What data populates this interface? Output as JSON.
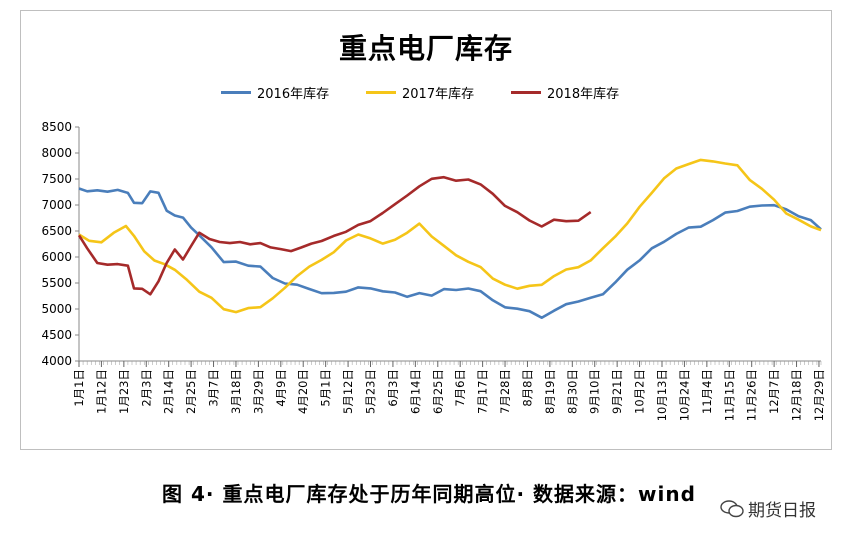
{
  "chart_data": {
    "type": "line",
    "title": "重点电厂库存",
    "ylim": [
      4000,
      8500
    ],
    "yticks": [
      4000,
      4500,
      5000,
      5500,
      6000,
      6500,
      7000,
      7500,
      8000,
      8500
    ],
    "x_tick_labels": [
      "1月1日",
      "1月12日",
      "1月23日",
      "2月3日",
      "2月14日",
      "2月25日",
      "3月7日",
      "3月18日",
      "3月29日",
      "4月9日",
      "4月20日",
      "5月1日",
      "5月12日",
      "5月23日",
      "6月3日",
      "6月14日",
      "6月25日",
      "7月6日",
      "7月17日",
      "7月28日",
      "8月8日",
      "8月19日",
      "8月30日",
      "9月10日",
      "9月21日",
      "10月2日",
      "10月13日",
      "10月24日",
      "11月4日",
      "11月15日",
      "11月26日",
      "12月7日",
      "12月18日",
      "12月29日"
    ],
    "grid": false,
    "legend_position": "top",
    "series": [
      {
        "name": "2016年库存",
        "color": "#4a7ebb",
        "x": [
          1,
          5,
          10,
          15,
          20,
          25,
          28,
          32,
          36,
          40,
          44,
          48,
          52,
          56,
          60,
          66,
          72,
          78,
          84,
          90,
          96,
          102,
          108,
          114,
          120,
          126,
          132,
          138,
          144,
          150,
          156,
          162,
          168,
          174,
          180,
          186,
          192,
          198,
          204,
          210,
          216,
          222,
          228,
          234,
          240,
          246,
          252,
          258,
          264,
          270,
          276,
          282,
          288,
          294,
          300,
          306,
          312,
          318,
          324,
          330,
          336,
          342,
          348,
          354,
          360,
          365
        ],
        "y": [
          7300,
          7250,
          7300,
          7250,
          7280,
          7250,
          7050,
          7050,
          7280,
          7250,
          6900,
          6800,
          6750,
          6550,
          6400,
          6200,
          5900,
          5900,
          5850,
          5800,
          5600,
          5500,
          5450,
          5400,
          5300,
          5300,
          5350,
          5400,
          5400,
          5350,
          5300,
          5250,
          5300,
          5250,
          5400,
          5350,
          5400,
          5350,
          5150,
          5050,
          5000,
          4950,
          4850,
          4950,
          5100,
          5150,
          5200,
          5300,
          5500,
          5750,
          5950,
          6150,
          6300,
          6450,
          6550,
          6600,
          6700,
          6850,
          6900,
          6950,
          7000,
          7000,
          6900,
          6800,
          6700,
          6550
        ]
      },
      {
        "name": "2017年库存",
        "color": "#f5c518",
        "x": [
          1,
          6,
          12,
          18,
          24,
          28,
          33,
          38,
          43,
          48,
          54,
          60,
          66,
          72,
          78,
          84,
          90,
          96,
          102,
          108,
          114,
          120,
          126,
          132,
          138,
          144,
          150,
          156,
          162,
          168,
          174,
          180,
          186,
          192,
          198,
          204,
          210,
          216,
          222,
          228,
          234,
          240,
          246,
          252,
          258,
          264,
          270,
          276,
          282,
          288,
          294,
          300,
          306,
          312,
          318,
          324,
          330,
          336,
          342,
          348,
          354,
          360,
          365
        ],
        "y": [
          6450,
          6300,
          6300,
          6450,
          6600,
          6400,
          6100,
          5950,
          5850,
          5750,
          5550,
          5350,
          5200,
          5000,
          4950,
          5000,
          5050,
          5200,
          5400,
          5650,
          5800,
          5950,
          6100,
          6300,
          6450,
          6350,
          6250,
          6350,
          6450,
          6650,
          6400,
          6200,
          6050,
          5900,
          5800,
          5600,
          5450,
          5400,
          5450,
          5450,
          5650,
          5750,
          5800,
          5950,
          6150,
          6400,
          6650,
          6950,
          7250,
          7500,
          7700,
          7800,
          7850,
          7850,
          7800,
          7750,
          7500,
          7300,
          7100,
          6850,
          6700,
          6600,
          6500
        ]
      },
      {
        "name": "2018年库存",
        "color": "#a52a2a",
        "x": [
          1,
          5,
          10,
          15,
          20,
          25,
          28,
          32,
          36,
          40,
          44,
          48,
          52,
          56,
          60,
          65,
          70,
          75,
          80,
          85,
          90,
          95,
          100,
          105,
          110,
          115,
          120,
          126,
          132,
          138,
          144,
          150,
          156,
          162,
          168,
          174,
          180,
          186,
          192,
          198,
          204,
          210,
          216,
          222,
          228,
          234,
          240,
          246,
          252
        ],
        "y": [
          6400,
          6150,
          5900,
          5850,
          5850,
          5850,
          5400,
          5400,
          5300,
          5550,
          5900,
          6150,
          5950,
          6200,
          6450,
          6350,
          6300,
          6250,
          6300,
          6250,
          6250,
          6200,
          6150,
          6100,
          6200,
          6250,
          6300,
          6400,
          6500,
          6600,
          6700,
          6850,
          7000,
          7200,
          7350,
          7500,
          7550,
          7450,
          7500,
          7400,
          7200,
          7000,
          6850,
          6700,
          6600,
          6700,
          6700,
          6700,
          6850
        ]
      }
    ]
  },
  "caption": "图 4· 重点电厂库存处于历年同期高位· 数据来源：wind",
  "watermark": "期货日报"
}
